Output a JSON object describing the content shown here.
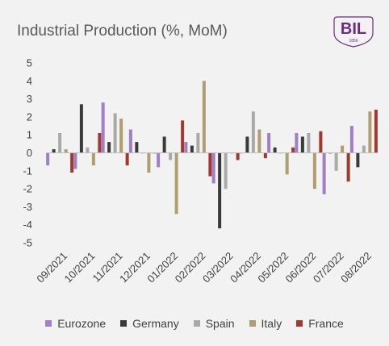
{
  "header": {
    "title": "Industrial Production (%, MoM)",
    "logo_text": "BIL",
    "logo_year": "1856",
    "logo_color": "#6d2b7f"
  },
  "chart_data": {
    "type": "bar",
    "title": "Industrial Production (%, MoM)",
    "xlabel": "",
    "ylabel": "",
    "ylim": [
      -5,
      5
    ],
    "yticks": [
      5,
      4,
      3,
      2,
      1,
      0,
      -1,
      -2,
      -3,
      -4,
      -5
    ],
    "grid": false,
    "legend_position": "bottom",
    "categories": [
      "09/2021",
      "10/2021",
      "11/2021",
      "12/2021",
      "01/2022",
      "02/2022",
      "03/2022",
      "04/2022",
      "05/2022",
      "06/2022",
      "07/2022",
      "08/2022"
    ],
    "series": [
      {
        "name": "Eurozone",
        "color": "#a17fc4",
        "values": [
          -0.7,
          -0.9,
          2.8,
          1.3,
          -0.8,
          0.6,
          -1.7,
          0.0,
          1.1,
          1.1,
          -2.3,
          1.5
        ]
      },
      {
        "name": "Germany",
        "color": "#3a3a3a",
        "values": [
          0.2,
          2.7,
          0.6,
          0.6,
          0.9,
          0.4,
          -4.2,
          0.9,
          0.3,
          0.9,
          0.0,
          -0.8
        ]
      },
      {
        "name": "Spain",
        "color": "#a9a9a9",
        "values": [
          1.1,
          0.3,
          2.2,
          0.0,
          -0.4,
          1.1,
          -2.0,
          2.3,
          0.0,
          1.1,
          -1.0,
          0.4
        ]
      },
      {
        "name": "Italy",
        "color": "#b09d70",
        "values": [
          0.2,
          -0.7,
          1.9,
          -1.1,
          -3.4,
          4.0,
          0.0,
          1.3,
          -1.2,
          -2.0,
          0.4,
          2.3
        ]
      },
      {
        "name": "France",
        "color": "#a0392e",
        "values": [
          -1.1,
          1.1,
          -0.7,
          0.0,
          1.8,
          -1.3,
          -0.4,
          -0.3,
          0.3,
          1.2,
          -1.6,
          2.4
        ]
      }
    ]
  }
}
